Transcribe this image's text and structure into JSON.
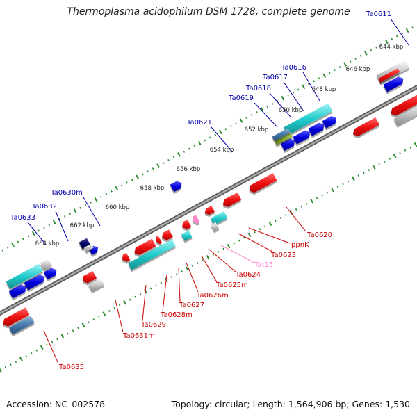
{
  "title": "Thermoplasma acidophilum DSM 1728, complete genome",
  "footer": {
    "accession": "Accession: NC_002578",
    "stats": "Topology: circular; Length: 1,564,906 bp; Genes: 1,530"
  },
  "colors": {
    "backbone": "#888888",
    "tick": "#2e8b2e",
    "forward_label": "#0000aa",
    "reverse_label": "#cc0000",
    "rna_label": "#ff88cc",
    "gene_red": "#ee1111",
    "gene_blue": "#0000dd",
    "gene_cyan": "#22cccc",
    "gene_grey": "#bbbbbb",
    "gene_olive": "#88aa33",
    "gene_steel": "#4477aa",
    "gene_navy": "#000066",
    "gene_pink": "#ff88cc"
  },
  "scale_labels": [
    "644 kbp",
    "646 kbp",
    "648 kbp",
    "650 kbp",
    "652 kbp",
    "654 kbp",
    "656 kbp",
    "658 kbp",
    "660 kbp",
    "662 kbp",
    "664 kbp"
  ],
  "forward_labels": [
    "Ta0611",
    "Ta0616",
    "Ta0617",
    "Ta0618",
    "Ta0619",
    "Ta0621",
    "Ta0630m",
    "Ta0632",
    "Ta0633"
  ],
  "reverse_labels": [
    "Ta0620",
    "ppnK",
    "Ta0623",
    "Tat15",
    "Ta0624",
    "Ta0625m",
    "Ta0626m",
    "Ta0627",
    "Ta0628m",
    "Ta0629",
    "Ta0631m",
    "Ta0635"
  ]
}
